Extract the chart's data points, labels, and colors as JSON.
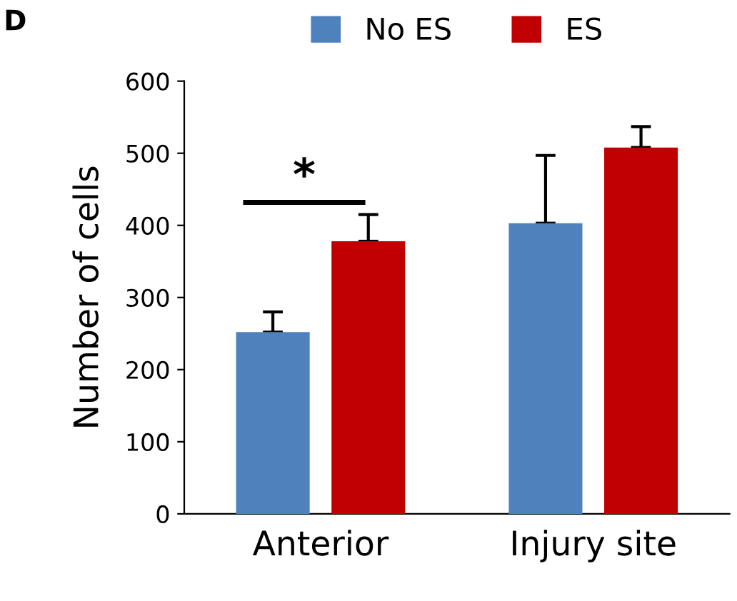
{
  "chart_data": {
    "type": "bar",
    "ylabel": "Number of cells",
    "categories": [
      "Anterior",
      "Injury site"
    ],
    "series": [
      {
        "name": "No ES",
        "color": "#4f81bd",
        "values": [
          252,
          403
        ],
        "errors": [
          28,
          94
        ]
      },
      {
        "name": "ES",
        "color": "#c00000",
        "values": [
          378,
          508
        ],
        "errors": [
          37,
          29
        ]
      }
    ],
    "ylim": [
      0,
      600
    ],
    "yticks": [
      0,
      100,
      200,
      300,
      400,
      500,
      600
    ],
    "grid": false,
    "legend": "top",
    "annotations": [
      "D",
      "*"
    ]
  }
}
